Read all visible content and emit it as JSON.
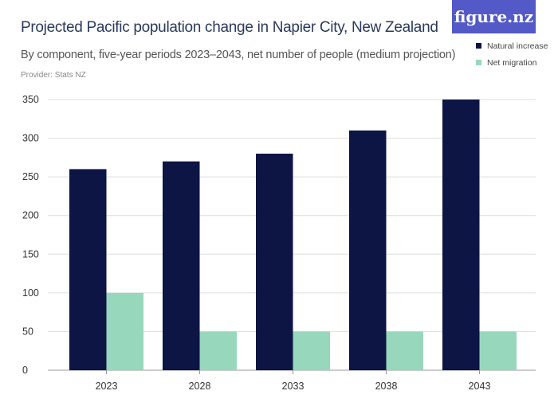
{
  "logo": "figure.nz",
  "chart_data": {
    "type": "bar",
    "title": "Projected Pacific population change in Napier City, New Zealand",
    "subtitle": "By component, five-year periods 2023–2043, net number of people (medium projection)",
    "provider": "Provider: Stats NZ",
    "categories": [
      "2023",
      "2028",
      "2033",
      "2038",
      "2043"
    ],
    "series": [
      {
        "name": "Natural increase",
        "color": "#0c1543",
        "values": [
          260,
          270,
          280,
          310,
          350
        ]
      },
      {
        "name": "Net migration",
        "color": "#97d8bd",
        "values": [
          100,
          50,
          50,
          50,
          50
        ]
      }
    ],
    "ylim": [
      0,
      350
    ],
    "yticks": [
      0,
      50,
      100,
      150,
      200,
      250,
      300,
      350
    ],
    "grid": true,
    "legend": "top-right"
  }
}
